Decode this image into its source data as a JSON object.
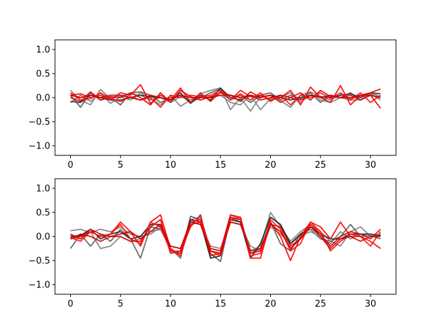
{
  "chart_data": [
    {
      "type": "line",
      "title": "",
      "xlabel": "",
      "ylabel": "",
      "xlim": [
        -1.55,
        32.55
      ],
      "ylim": [
        -1.2,
        1.2
      ],
      "x_ticks": [
        0,
        5,
        10,
        15,
        20,
        25,
        30
      ],
      "x_tick_labels": [
        "0",
        "5",
        "10",
        "15",
        "20",
        "25",
        "30"
      ],
      "y_ticks": [
        1.0,
        0.5,
        0.0,
        -0.5,
        -1.0
      ],
      "y_tick_labels": [
        "1.0",
        "0.5",
        "0.0",
        "−0.5",
        "−1.0"
      ],
      "grid": false,
      "x": [
        0,
        1,
        2,
        3,
        4,
        5,
        6,
        7,
        8,
        9,
        10,
        11,
        12,
        13,
        14,
        15,
        16,
        17,
        18,
        19,
        20,
        21,
        22,
        23,
        24,
        25,
        26,
        27,
        28,
        29,
        30,
        31
      ],
      "series": [
        {
          "color": "#808080",
          "values": [
            0.15,
            -0.05,
            -0.15,
            0.17,
            -0.02,
            0.03,
            0.08,
            0.05,
            -0.05,
            0.0,
            -0.1,
            0.02,
            -0.05,
            0.08,
            0.15,
            0.2,
            -0.25,
            0.0,
            -0.28,
            0.02,
            0.05,
            -0.06,
            -0.2,
            0.05,
            0.12,
            0.02,
            -0.05,
            0.06,
            -0.02,
            0.03,
            0.08,
            -0.05
          ]
        },
        {
          "color": "#5a5a5a",
          "values": [
            0.05,
            -0.2,
            0.1,
            -0.05,
            0.0,
            -0.15,
            0.1,
            0.12,
            0.05,
            -0.1,
            0.0,
            0.05,
            -0.1,
            0.0,
            0.1,
            0.18,
            -0.05,
            0.05,
            -0.1,
            0.05,
            0.1,
            -0.05,
            0.05,
            -0.02,
            0.1,
            -0.1,
            0.05,
            0.0,
            0.1,
            -0.05,
            0.05,
            0.0
          ]
        },
        {
          "color": "#808080",
          "values": [
            -0.1,
            0.05,
            -0.08,
            0.1,
            -0.12,
            0.02,
            -0.05,
            0.1,
            -0.02,
            -0.15,
            0.05,
            -0.18,
            -0.05,
            0.05,
            0.0,
            0.05,
            -0.1,
            -0.15,
            0.05,
            -0.25,
            -0.02,
            0.0,
            0.1,
            -0.1,
            0.05,
            -0.05,
            -0.1,
            0.0,
            -0.05,
            -0.05,
            0.1,
            0.02
          ]
        },
        {
          "color": "#303030",
          "values": [
            -0.08,
            -0.1,
            0.05,
            0.0,
            -0.05,
            -0.05,
            0.0,
            0.05,
            0.02,
            0.0,
            -0.05,
            0.1,
            -0.12,
            0.05,
            -0.05,
            0.2,
            0.0,
            -0.05,
            0.05,
            0.0,
            0.05,
            0.0,
            -0.05,
            0.0,
            0.05,
            0.02,
            0.0,
            0.05,
            0.08,
            0.0,
            0.1,
            0.08
          ]
        },
        {
          "color": "#ff0000",
          "values": [
            0.05,
            0.08,
            0.0,
            0.05,
            -0.05,
            0.1,
            0.05,
            0.27,
            -0.12,
            0.05,
            -0.05,
            0.2,
            -0.1,
            0.1,
            -0.08,
            0.12,
            -0.05,
            0.15,
            0.02,
            0.05,
            -0.05,
            0.0,
            0.15,
            -0.15,
            0.22,
            0.0,
            -0.1,
            0.25,
            -0.15,
            0.05,
            0.1,
            0.18
          ]
        },
        {
          "color": "#e00000",
          "values": [
            0.0,
            -0.08,
            0.12,
            -0.05,
            0.02,
            0.0,
            0.1,
            0.0,
            -0.15,
            0.1,
            -0.1,
            0.15,
            0.02,
            -0.05,
            0.02,
            0.1,
            0.05,
            -0.08,
            0.12,
            0.0,
            0.05,
            -0.1,
            0.0,
            0.1,
            -0.05,
            0.15,
            0.02,
            0.0,
            0.05,
            -0.05,
            0.05,
            -0.22
          ]
        },
        {
          "color": "#ff1010",
          "values": [
            0.1,
            -0.05,
            -0.02,
            0.1,
            -0.02,
            -0.08,
            0.02,
            -0.05,
            0.0,
            -0.2,
            0.05,
            0.0,
            0.05,
            0.02,
            0.05,
            0.15,
            -0.05,
            0.08,
            -0.05,
            0.1,
            -0.08,
            0.05,
            -0.15,
            0.05,
            0.0,
            0.1,
            -0.02,
            0.1,
            -0.05,
            0.1,
            -0.1,
            0.05
          ]
        },
        {
          "color": "#cc0000",
          "values": [
            0.05,
            0.0,
            0.05,
            0.0,
            0.05,
            0.05,
            0.0,
            -0.05,
            0.05,
            0.0,
            -0.05,
            0.05,
            0.0,
            0.0,
            0.0,
            0.05,
            0.05,
            0.0,
            0.05,
            -0.05,
            0.0,
            0.05,
            0.0,
            -0.05,
            0.05,
            0.0,
            0.05,
            0.0,
            0.0,
            0.05,
            0.05,
            0.0
          ]
        }
      ]
    },
    {
      "type": "line",
      "title": "",
      "xlabel": "",
      "ylabel": "",
      "xlim": [
        -1.55,
        32.55
      ],
      "ylim": [
        -1.2,
        1.2
      ],
      "x_ticks": [
        0,
        5,
        10,
        15,
        20,
        25,
        30
      ],
      "x_tick_labels": [
        "0",
        "5",
        "10",
        "15",
        "20",
        "25",
        "30"
      ],
      "y_ticks": [
        1.0,
        0.5,
        0.0,
        -0.5,
        -1.0
      ],
      "y_tick_labels": [
        "1.0",
        "0.5",
        "0.0",
        "−0.5",
        "−1.0"
      ],
      "grid": false,
      "x": [
        0,
        1,
        2,
        3,
        4,
        5,
        6,
        7,
        8,
        9,
        10,
        11,
        12,
        13,
        14,
        15,
        16,
        17,
        18,
        19,
        20,
        21,
        22,
        23,
        24,
        25,
        26,
        27,
        28,
        29,
        30,
        31
      ],
      "series": [
        {
          "color": "#808080",
          "values": [
            0.12,
            0.15,
            0.08,
            0.15,
            0.1,
            0.2,
            0.05,
            0.0,
            0.05,
            0.2,
            -0.3,
            -0.3,
            0.35,
            0.4,
            -0.25,
            -0.3,
            0.45,
            0.35,
            -0.3,
            -0.2,
            0.5,
            0.2,
            -0.1,
            0.1,
            0.25,
            0.1,
            -0.1,
            -0.2,
            0.1,
            0.2,
            0.0,
            0.05
          ]
        },
        {
          "color": "#606060",
          "values": [
            -0.25,
            0.05,
            -0.2,
            0.05,
            -0.1,
            0.15,
            -0.05,
            -0.45,
            0.2,
            0.15,
            -0.25,
            -0.45,
            0.42,
            0.35,
            -0.35,
            -0.52,
            0.4,
            0.3,
            -0.35,
            -0.25,
            0.3,
            -0.15,
            -0.3,
            0.05,
            0.15,
            -0.05,
            -0.1,
            0.0,
            0.25,
            0.0,
            0.02,
            -0.05
          ]
        },
        {
          "color": "#808080",
          "values": [
            0.02,
            -0.05,
            0.1,
            -0.25,
            -0.2,
            0.0,
            -0.1,
            -0.05,
            0.1,
            0.15,
            -0.2,
            -0.25,
            0.3,
            0.25,
            -0.2,
            -0.25,
            0.3,
            0.25,
            -0.2,
            -0.3,
            0.2,
            0.05,
            -0.15,
            0.02,
            0.1,
            0.0,
            -0.15,
            0.1,
            -0.05,
            0.05,
            0.0,
            0.02
          ]
        },
        {
          "color": "#202020",
          "values": [
            0.0,
            0.02,
            0.15,
            -0.05,
            0.05,
            0.1,
            -0.05,
            0.0,
            0.25,
            0.25,
            -0.3,
            -0.35,
            0.35,
            0.3,
            -0.45,
            -0.4,
            0.35,
            0.3,
            -0.45,
            -0.15,
            0.4,
            0.25,
            -0.15,
            0.05,
            0.2,
            0.05,
            -0.05,
            -0.05,
            0.05,
            0.05,
            0.05,
            0.02
          ]
        },
        {
          "color": "#ff0000",
          "values": [
            -0.05,
            0.0,
            0.1,
            0.0,
            0.05,
            0.3,
            0.1,
            -0.2,
            0.3,
            0.45,
            -0.25,
            -0.4,
            0.25,
            0.3,
            -0.25,
            -0.3,
            0.45,
            0.4,
            -0.45,
            -0.45,
            0.3,
            0.0,
            -0.5,
            0.0,
            0.3,
            0.2,
            -0.05,
            0.3,
            0.0,
            0.0,
            -0.1,
            -0.25
          ]
        },
        {
          "color": "#e00000",
          "values": [
            0.05,
            -0.05,
            0.15,
            0.05,
            0.0,
            0.0,
            -0.1,
            -0.1,
            0.2,
            0.35,
            -0.35,
            -0.3,
            0.2,
            0.45,
            -0.4,
            -0.35,
            0.4,
            0.35,
            -0.35,
            -0.3,
            0.25,
            0.2,
            -0.2,
            -0.05,
            0.25,
            0.05,
            -0.2,
            0.0,
            0.1,
            0.05,
            -0.05,
            0.15
          ]
        },
        {
          "color": "#ff1010",
          "values": [
            -0.02,
            -0.1,
            0.1,
            0.0,
            0.05,
            0.25,
            -0.05,
            -0.15,
            0.3,
            0.2,
            -0.3,
            -0.35,
            0.3,
            0.35,
            -0.3,
            -0.4,
            0.35,
            0.4,
            -0.4,
            -0.35,
            0.35,
            0.15,
            -0.3,
            -0.15,
            0.3,
            0.1,
            -0.3,
            -0.1,
            0.05,
            0.0,
            -0.2,
            0.1
          ]
        },
        {
          "color": "#cc0000",
          "values": [
            -0.05,
            0.05,
            0.0,
            -0.1,
            0.0,
            0.05,
            0.1,
            -0.05,
            0.1,
            0.25,
            -0.2,
            -0.25,
            0.3,
            0.25,
            -0.3,
            -0.35,
            0.3,
            0.25,
            -0.3,
            -0.25,
            0.25,
            0.1,
            -0.25,
            -0.05,
            0.2,
            0.0,
            -0.25,
            -0.05,
            0.0,
            -0.1,
            0.0,
            0.0
          ]
        }
      ]
    }
  ]
}
